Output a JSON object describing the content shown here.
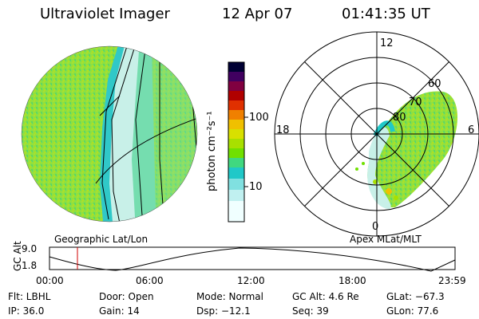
{
  "header": {
    "instrument": "Ultraviolet Imager",
    "date": "12 Apr 07",
    "time": "01:41:35 UT"
  },
  "colorbar": {
    "unit_label": "photon cm⁻²s⁻¹",
    "ticks": [
      "100",
      "10"
    ],
    "colors_top_to_bottom": [
      "#000033",
      "#400060",
      "#800040",
      "#b00000",
      "#e03000",
      "#f08000",
      "#f0c000",
      "#d8e000",
      "#a8e000",
      "#70e000",
      "#40d880",
      "#20c8c8",
      "#80e0e0",
      "#c0f0f0",
      "#f0ffff"
    ]
  },
  "left_panel": {
    "label": "Geographic Lat/Lon"
  },
  "right_panel": {
    "label": "Apex MLat/MLT",
    "mlt_labels": {
      "top": "12",
      "left": "18",
      "right": "6",
      "bottom": "0"
    },
    "lat_labels": [
      "60",
      "70",
      "80"
    ]
  },
  "altitude_plot": {
    "ylabel": "GC Alt",
    "yticks": [
      "9.0",
      "1.8"
    ],
    "xticks": [
      "00:00",
      "06:00",
      "12:00",
      "18:00",
      "23:59"
    ],
    "marker_time_fraction": 0.07,
    "marker_color": "#d00000"
  },
  "status": {
    "flt": "Flt: LBHL",
    "ip": "IP: 36.0",
    "door": "Door: Open",
    "gain": "Gain: 14",
    "mode": "Mode: Normal",
    "dsp": "Dsp:  −12.1",
    "gc_alt": "GC Alt: 4.6 Re",
    "seq": "Seq: 39",
    "glat": "GLat:  −67.3",
    "glon": "GLon:  77.6"
  }
}
